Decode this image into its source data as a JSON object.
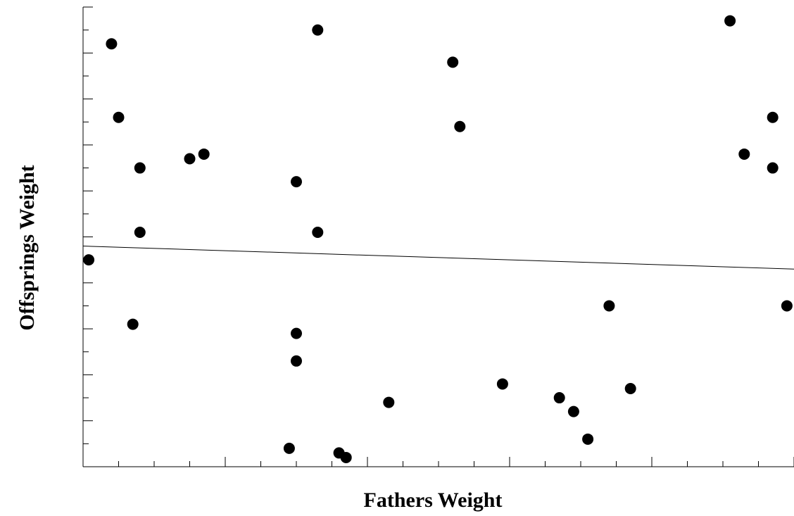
{
  "chart_data": {
    "type": "scatter",
    "title": "",
    "xlabel": "Fathers  Weight",
    "ylabel": "Offsprings  Weight",
    "xlim": [
      0,
      50
    ],
    "ylim": [
      0,
      50
    ],
    "grid": false,
    "legend": "none",
    "colors": {
      "points": "#000000",
      "axes": "#000000",
      "trend": "#000000"
    },
    "series": [
      {
        "values": [
          {
            "x": 0.4,
            "y": 22.5
          },
          {
            "x": 2.0,
            "y": 46.0
          },
          {
            "x": 2.5,
            "y": 38.0
          },
          {
            "x": 3.5,
            "y": 15.5
          },
          {
            "x": 4.0,
            "y": 32.5
          },
          {
            "x": 4.0,
            "y": 25.5
          },
          {
            "x": 7.5,
            "y": 33.5
          },
          {
            "x": 8.5,
            "y": 34.0
          },
          {
            "x": 14.5,
            "y": 2.0
          },
          {
            "x": 15.0,
            "y": 31.0
          },
          {
            "x": 15.0,
            "y": 14.5
          },
          {
            "x": 15.0,
            "y": 11.5
          },
          {
            "x": 16.5,
            "y": 47.5
          },
          {
            "x": 16.5,
            "y": 25.5
          },
          {
            "x": 18.0,
            "y": 1.5
          },
          {
            "x": 18.5,
            "y": 1.0
          },
          {
            "x": 21.5,
            "y": 7.0
          },
          {
            "x": 26.0,
            "y": 44.0
          },
          {
            "x": 26.5,
            "y": 37.0
          },
          {
            "x": 29.5,
            "y": 9.0
          },
          {
            "x": 33.5,
            "y": 7.5
          },
          {
            "x": 34.5,
            "y": 6.0
          },
          {
            "x": 35.5,
            "y": 3.0
          },
          {
            "x": 37.0,
            "y": 17.5
          },
          {
            "x": 38.5,
            "y": 8.5
          },
          {
            "x": 45.5,
            "y": 48.5
          },
          {
            "x": 46.5,
            "y": 34.0
          },
          {
            "x": 48.5,
            "y": 38.0
          },
          {
            "x": 48.5,
            "y": 32.5
          },
          {
            "x": 49.5,
            "y": 17.5
          }
        ]
      }
    ],
    "trendline": {
      "x": [
        0,
        50
      ],
      "y": [
        24.0,
        21.5
      ]
    }
  }
}
